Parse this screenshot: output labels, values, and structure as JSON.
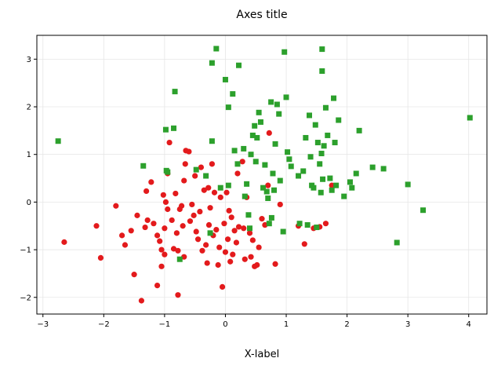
{
  "chart_data": {
    "type": "scatter",
    "title": "Axes title",
    "xlabel": "X-label",
    "ylabel": "",
    "xlim": [
      -3.1,
      4.3
    ],
    "ylim": [
      -2.35,
      3.5
    ],
    "xticks": [
      -3,
      -2,
      -1,
      0,
      1,
      2,
      3,
      4
    ],
    "yticks": [
      -2,
      -1,
      0,
      1,
      2,
      3
    ],
    "xtick_labels": [
      "−3",
      "−2",
      "−1",
      "0",
      "1",
      "2",
      "3",
      "4"
    ],
    "ytick_labels": [
      "−2",
      "−1",
      "0",
      "1",
      "2",
      "3"
    ],
    "grid": true,
    "series": [
      {
        "marker": "circle",
        "color": "#e31a1c",
        "points": [
          [
            -2.65,
            -0.84
          ],
          [
            -2.12,
            -0.5
          ],
          [
            -2.05,
            -1.17
          ],
          [
            -1.8,
            -0.08
          ],
          [
            -1.7,
            -0.7
          ],
          [
            -1.65,
            -0.9
          ],
          [
            -1.55,
            -0.6
          ],
          [
            -1.5,
            -1.52
          ],
          [
            -1.45,
            -0.28
          ],
          [
            -1.38,
            -2.07
          ],
          [
            -1.32,
            -0.53
          ],
          [
            -1.3,
            0.23
          ],
          [
            -1.28,
            -0.38
          ],
          [
            -1.22,
            0.42
          ],
          [
            -1.18,
            -0.45
          ],
          [
            -1.12,
            -1.75
          ],
          [
            -1.12,
            -0.7
          ],
          [
            -1.08,
            -0.82
          ],
          [
            -1.05,
            -1.0
          ],
          [
            -1.05,
            -1.35
          ],
          [
            -1.02,
            0.15
          ],
          [
            -1.0,
            -0.55
          ],
          [
            -1.0,
            -1.1
          ],
          [
            -0.98,
            0.0
          ],
          [
            -0.95,
            -0.15
          ],
          [
            -0.95,
            0.6
          ],
          [
            -0.92,
            1.25
          ],
          [
            -0.88,
            -0.38
          ],
          [
            -0.85,
            -0.98
          ],
          [
            -0.82,
            0.18
          ],
          [
            -0.8,
            -0.65
          ],
          [
            -0.78,
            -1.02
          ],
          [
            -0.78,
            -1.95
          ],
          [
            -0.75,
            -0.15
          ],
          [
            -0.72,
            -0.08
          ],
          [
            -0.7,
            -0.5
          ],
          [
            -0.68,
            0.45
          ],
          [
            -0.68,
            -1.15
          ],
          [
            -0.66,
            0.8
          ],
          [
            -0.65,
            1.08
          ],
          [
            -0.6,
            1.06
          ],
          [
            -0.58,
            -0.4
          ],
          [
            -0.55,
            -0.05
          ],
          [
            -0.52,
            -0.28
          ],
          [
            -0.5,
            0.55
          ],
          [
            -0.48,
            -0.62
          ],
          [
            -0.45,
            -0.78
          ],
          [
            -0.42,
            -0.2
          ],
          [
            -0.4,
            0.73
          ],
          [
            -0.38,
            -1.02
          ],
          [
            -0.35,
            0.25
          ],
          [
            -0.32,
            -0.9
          ],
          [
            -0.3,
            -1.28
          ],
          [
            -0.28,
            0.3
          ],
          [
            -0.27,
            -0.48
          ],
          [
            -0.25,
            -0.12
          ],
          [
            -0.22,
            0.8
          ],
          [
            -0.2,
            -0.7
          ],
          [
            -0.18,
            0.2
          ],
          [
            -0.15,
            -0.58
          ],
          [
            -0.12,
            -1.32
          ],
          [
            -0.1,
            -0.95
          ],
          [
            -0.08,
            0.1
          ],
          [
            -0.05,
            -1.78
          ],
          [
            -0.02,
            -0.45
          ],
          [
            0.0,
            -1.05
          ],
          [
            0.02,
            0.2
          ],
          [
            0.04,
            -0.78
          ],
          [
            0.06,
            -0.18
          ],
          [
            0.08,
            -1.25
          ],
          [
            0.1,
            -0.32
          ],
          [
            0.12,
            -1.1
          ],
          [
            0.15,
            -0.6
          ],
          [
            0.18,
            -0.85
          ],
          [
            0.2,
            0.6
          ],
          [
            0.22,
            -0.52
          ],
          [
            0.28,
            0.85
          ],
          [
            0.3,
            -0.55
          ],
          [
            0.32,
            -1.2
          ],
          [
            0.35,
            0.1
          ],
          [
            0.4,
            -0.65
          ],
          [
            0.42,
            -1.15
          ],
          [
            0.45,
            -0.8
          ],
          [
            0.48,
            -1.35
          ],
          [
            0.52,
            -1.32
          ],
          [
            0.55,
            -0.95
          ],
          [
            0.6,
            -0.35
          ],
          [
            0.65,
            -0.48
          ],
          [
            0.7,
            0.35
          ],
          [
            0.72,
            1.45
          ],
          [
            0.82,
            -1.3
          ],
          [
            0.9,
            -0.05
          ],
          [
            1.2,
            -0.5
          ],
          [
            1.3,
            -0.88
          ],
          [
            1.45,
            -0.55
          ],
          [
            1.55,
            -0.52
          ],
          [
            1.65,
            -0.45
          ],
          [
            1.75,
            0.35
          ]
        ]
      },
      {
        "marker": "square",
        "color": "#2ca02c",
        "points": [
          [
            -2.75,
            1.28
          ],
          [
            -1.35,
            0.76
          ],
          [
            -0.98,
            1.52
          ],
          [
            -0.97,
            0.66
          ],
          [
            -0.95,
            0.63
          ],
          [
            -0.85,
            1.55
          ],
          [
            -0.83,
            2.32
          ],
          [
            -0.75,
            -1.2
          ],
          [
            -0.48,
            0.68
          ],
          [
            -0.32,
            0.55
          ],
          [
            -0.25,
            -0.65
          ],
          [
            -0.22,
            1.28
          ],
          [
            -0.22,
            2.92
          ],
          [
            -0.15,
            3.22
          ],
          [
            -0.08,
            0.3
          ],
          [
            0.0,
            2.57
          ],
          [
            0.05,
            1.99
          ],
          [
            0.05,
            0.35
          ],
          [
            0.12,
            2.27
          ],
          [
            0.15,
            1.08
          ],
          [
            0.2,
            0.8
          ],
          [
            0.22,
            2.87
          ],
          [
            0.3,
            1.12
          ],
          [
            0.32,
            0.12
          ],
          [
            0.35,
            0.38
          ],
          [
            0.38,
            -0.27
          ],
          [
            0.4,
            -0.55
          ],
          [
            0.42,
            1.0
          ],
          [
            0.45,
            1.4
          ],
          [
            0.48,
            1.6
          ],
          [
            0.5,
            0.85
          ],
          [
            0.52,
            1.35
          ],
          [
            0.55,
            1.88
          ],
          [
            0.58,
            1.68
          ],
          [
            0.62,
            0.3
          ],
          [
            0.65,
            0.78
          ],
          [
            0.68,
            0.22
          ],
          [
            0.7,
            0.08
          ],
          [
            0.72,
            -0.45
          ],
          [
            0.75,
            2.1
          ],
          [
            0.76,
            -0.33
          ],
          [
            0.78,
            0.6
          ],
          [
            0.8,
            0.25
          ],
          [
            0.82,
            1.22
          ],
          [
            0.85,
            2.05
          ],
          [
            0.88,
            1.85
          ],
          [
            0.9,
            0.45
          ],
          [
            0.95,
            -0.62
          ],
          [
            0.97,
            3.15
          ],
          [
            1.0,
            2.2
          ],
          [
            1.02,
            1.05
          ],
          [
            1.05,
            0.9
          ],
          [
            1.08,
            0.75
          ],
          [
            1.2,
            0.55
          ],
          [
            1.22,
            -0.45
          ],
          [
            1.28,
            0.65
          ],
          [
            1.32,
            1.35
          ],
          [
            1.35,
            -0.48
          ],
          [
            1.38,
            1.82
          ],
          [
            1.4,
            0.95
          ],
          [
            1.42,
            0.35
          ],
          [
            1.45,
            0.3
          ],
          [
            1.48,
            1.62
          ],
          [
            1.5,
            -0.53
          ],
          [
            1.52,
            1.25
          ],
          [
            1.55,
            0.8
          ],
          [
            1.57,
            0.2
          ],
          [
            1.58,
            1.02
          ],
          [
            1.59,
            3.21
          ],
          [
            1.59,
            2.75
          ],
          [
            1.6,
            0.48
          ],
          [
            1.62,
            1.18
          ],
          [
            1.65,
            1.98
          ],
          [
            1.68,
            1.4
          ],
          [
            1.72,
            0.5
          ],
          [
            1.75,
            0.25
          ],
          [
            1.78,
            2.18
          ],
          [
            1.8,
            1.25
          ],
          [
            1.82,
            0.35
          ],
          [
            1.86,
            1.72
          ],
          [
            1.95,
            0.12
          ],
          [
            2.05,
            0.42
          ],
          [
            2.08,
            0.3
          ],
          [
            2.15,
            0.6
          ],
          [
            2.2,
            1.5
          ],
          [
            2.42,
            0.73
          ],
          [
            2.6,
            0.7
          ],
          [
            2.82,
            -0.85
          ],
          [
            3.0,
            0.37
          ],
          [
            3.25,
            -0.17
          ],
          [
            4.02,
            1.77
          ]
        ]
      }
    ]
  }
}
